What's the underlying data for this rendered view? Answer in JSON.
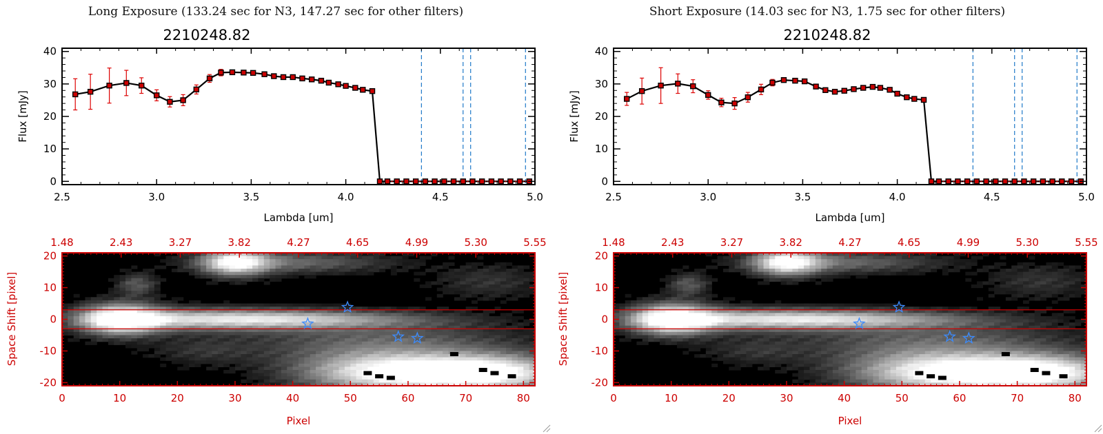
{
  "panels": [
    {
      "exposure_title": "Long Exposure (133.24 sec for N3, 147.27 sec for other filters)",
      "object_title": "2210248.82"
    },
    {
      "exposure_title": "Short Exposure (14.03 sec for N3, 1.75 sec for other filters)",
      "object_title": "2210248.82"
    }
  ],
  "chart_data": [
    {
      "type": "line",
      "title": "2210248.82",
      "xlabel": "Lambda [um]",
      "ylabel": "Flux [mJy]",
      "xlim": [
        2.5,
        5.0
      ],
      "ylim": [
        -1,
        41
      ],
      "xticks": [
        "2.5",
        "3.0",
        "3.5",
        "4.0",
        "4.5",
        "5.0"
      ],
      "yticks": [
        "0",
        "10",
        "20",
        "30",
        "40"
      ],
      "series": [
        {
          "name": "flux",
          "x": [
            2.57,
            2.65,
            2.75,
            2.84,
            2.92,
            3.0,
            3.07,
            3.14,
            3.21,
            3.28,
            3.34,
            3.4,
            3.46,
            3.51,
            3.57,
            3.62,
            3.67,
            3.72,
            3.77,
            3.82,
            3.87,
            3.91,
            3.96,
            4.0,
            4.05,
            4.09,
            4.14,
            4.18
          ],
          "y": [
            26.8,
            27.6,
            29.5,
            30.3,
            29.5,
            26.5,
            24.5,
            25.0,
            28.3,
            31.7,
            33.5,
            33.6,
            33.5,
            33.4,
            33.0,
            32.4,
            32.1,
            32.1,
            31.7,
            31.4,
            31.0,
            30.4,
            29.9,
            29.4,
            28.8,
            28.2,
            27.8,
            0.0
          ],
          "yerr": [
            4.8,
            5.4,
            5.4,
            3.9,
            2.4,
            1.7,
            1.6,
            1.7,
            1.4,
            1.2,
            1.0,
            0,
            0,
            0,
            0,
            0,
            0,
            0,
            0,
            0,
            0,
            0,
            0,
            0,
            0,
            0,
            0,
            0
          ]
        }
      ],
      "zero_x": [
        4.22,
        4.27,
        4.32,
        4.37,
        4.42,
        4.47,
        4.52,
        4.57,
        4.62,
        4.67,
        4.72,
        4.77,
        4.82,
        4.87,
        4.92,
        4.97
      ],
      "vlines": [
        4.4,
        4.62,
        4.66,
        4.95
      ]
    },
    {
      "type": "heatmap",
      "xlabel": "Pixel",
      "ylabel": "Space Shift [pixel]",
      "xlim": [
        0,
        82
      ],
      "ylim": [
        -21,
        21
      ],
      "xticks": [
        "0",
        "10",
        "20",
        "30",
        "40",
        "50",
        "60",
        "70",
        "80"
      ],
      "yticks": [
        "-20",
        "-10",
        "0",
        "10",
        "20"
      ],
      "top_ticks": [
        "1.48",
        "2.43",
        "3.27",
        "3.82",
        "4.27",
        "4.65",
        "4.99",
        "5.30",
        "5.55"
      ],
      "hlines": [
        3,
        -3
      ],
      "stars": [
        [
          49.5,
          3.8
        ],
        [
          42.6,
          -1.4
        ],
        [
          58.3,
          -5.5
        ],
        [
          61.6,
          -6.0
        ]
      ],
      "blobs": [
        {
          "x": 10,
          "y": 0,
          "sx": 5,
          "sy": 3.5,
          "v": 1.0
        },
        {
          "x": 20,
          "y": 0,
          "sx": 12,
          "sy": 2.5,
          "v": 0.55
        },
        {
          "x": 36,
          "y": 0,
          "sx": 12,
          "sy": 2.2,
          "v": 0.45
        },
        {
          "x": 50,
          "y": 0,
          "sx": 14,
          "sy": 2.0,
          "v": 0.3
        },
        {
          "x": 30,
          "y": 18,
          "sx": 4,
          "sy": 3,
          "v": 0.9
        },
        {
          "x": 40,
          "y": 18,
          "sx": 12,
          "sy": 2.5,
          "v": 0.4
        },
        {
          "x": 57,
          "y": -17,
          "sx": 11,
          "sy": 4.5,
          "v": 1.0
        },
        {
          "x": 75,
          "y": -17,
          "sx": 9,
          "sy": 4,
          "v": 0.95
        },
        {
          "x": 55,
          "y": -7,
          "sx": 18,
          "sy": 5,
          "v": 0.35
        },
        {
          "x": 13,
          "y": 11,
          "sx": 2.5,
          "sy": 2.5,
          "v": 0.35
        },
        {
          "x": 74,
          "y": 12,
          "sx": 7,
          "sy": 4,
          "v": 0.2
        },
        {
          "x": 24,
          "y": -10,
          "sx": 6,
          "sy": 3,
          "v": 0.15
        }
      ]
    },
    {
      "type": "line",
      "title": "2210248.82",
      "xlabel": "Lambda [um]",
      "ylabel": "Flux [mJy]",
      "xlim": [
        2.5,
        5.0
      ],
      "ylim": [
        -1,
        41
      ],
      "xticks": [
        "2.5",
        "3.0",
        "3.5",
        "4.0",
        "4.5",
        "5.0"
      ],
      "yticks": [
        "0",
        "10",
        "20",
        "30",
        "40"
      ],
      "series": [
        {
          "name": "flux",
          "x": [
            2.57,
            2.65,
            2.75,
            2.84,
            2.92,
            3.0,
            3.07,
            3.14,
            3.21,
            3.28,
            3.34,
            3.4,
            3.46,
            3.51,
            3.57,
            3.62,
            3.67,
            3.72,
            3.77,
            3.82,
            3.87,
            3.91,
            3.96,
            4.0,
            4.05,
            4.09,
            4.14,
            4.18
          ],
          "y": [
            25.4,
            27.8,
            29.5,
            30.1,
            29.3,
            26.6,
            24.3,
            24.0,
            25.9,
            28.3,
            30.4,
            31.2,
            31.0,
            30.8,
            29.2,
            28.1,
            27.6,
            27.9,
            28.4,
            28.8,
            29.1,
            28.8,
            28.2,
            27.0,
            25.9,
            25.4,
            25.1,
            0.0
          ],
          "yerr": [
            2.0,
            4.0,
            5.5,
            3.0,
            2.0,
            1.3,
            1.3,
            1.8,
            1.5,
            1.6,
            1.0,
            0,
            0,
            0,
            0,
            0,
            0,
            0,
            0,
            0,
            0,
            0,
            0,
            0,
            0,
            0,
            0,
            0
          ]
        }
      ],
      "zero_x": [
        4.22,
        4.27,
        4.32,
        4.37,
        4.42,
        4.47,
        4.52,
        4.57,
        4.62,
        4.67,
        4.72,
        4.77,
        4.82,
        4.87,
        4.92,
        4.97
      ],
      "vlines": [
        4.4,
        4.62,
        4.66,
        4.95
      ]
    },
    {
      "type": "heatmap",
      "xlabel": "Pixel",
      "ylabel": "Space Shift [pixel]",
      "xlim": [
        0,
        82
      ],
      "ylim": [
        -21,
        21
      ],
      "xticks": [
        "0",
        "10",
        "20",
        "30",
        "40",
        "50",
        "60",
        "70",
        "80"
      ],
      "yticks": [
        "-20",
        "-10",
        "0",
        "10",
        "20"
      ],
      "top_ticks": [
        "1.48",
        "2.43",
        "3.27",
        "3.82",
        "4.27",
        "4.65",
        "4.99",
        "5.30",
        "5.55"
      ],
      "hlines": [
        3,
        -3
      ],
      "stars": [
        [
          49.5,
          3.8
        ],
        [
          42.6,
          -1.4
        ],
        [
          58.3,
          -5.5
        ],
        [
          61.6,
          -6.0
        ]
      ],
      "blobs": [
        {
          "x": 10,
          "y": 0,
          "sx": 5,
          "sy": 3.5,
          "v": 1.0
        },
        {
          "x": 20,
          "y": 0,
          "sx": 12,
          "sy": 2.5,
          "v": 0.55
        },
        {
          "x": 36,
          "y": 0,
          "sx": 12,
          "sy": 2.2,
          "v": 0.45
        },
        {
          "x": 50,
          "y": 0,
          "sx": 14,
          "sy": 2.0,
          "v": 0.3
        },
        {
          "x": 30,
          "y": 18,
          "sx": 4,
          "sy": 3,
          "v": 0.9
        },
        {
          "x": 40,
          "y": 18,
          "sx": 12,
          "sy": 2.5,
          "v": 0.4
        },
        {
          "x": 57,
          "y": -17,
          "sx": 11,
          "sy": 4.5,
          "v": 1.0
        },
        {
          "x": 75,
          "y": -17,
          "sx": 9,
          "sy": 4,
          "v": 0.95
        },
        {
          "x": 55,
          "y": -7,
          "sx": 18,
          "sy": 5,
          "v": 0.35
        },
        {
          "x": 13,
          "y": 11,
          "sx": 2.5,
          "sy": 2.5,
          "v": 0.35
        },
        {
          "x": 74,
          "y": 12,
          "sx": 7,
          "sy": 4,
          "v": 0.2
        },
        {
          "x": 24,
          "y": -10,
          "sx": 6,
          "sy": 3,
          "v": 0.15
        }
      ]
    }
  ],
  "colors": {
    "line": "#000000",
    "marker": "#cc0000",
    "errorbar": "#dd0000",
    "vline": "#1e78c8",
    "image_frame": "#cc0000",
    "star": "#3c8cff"
  }
}
